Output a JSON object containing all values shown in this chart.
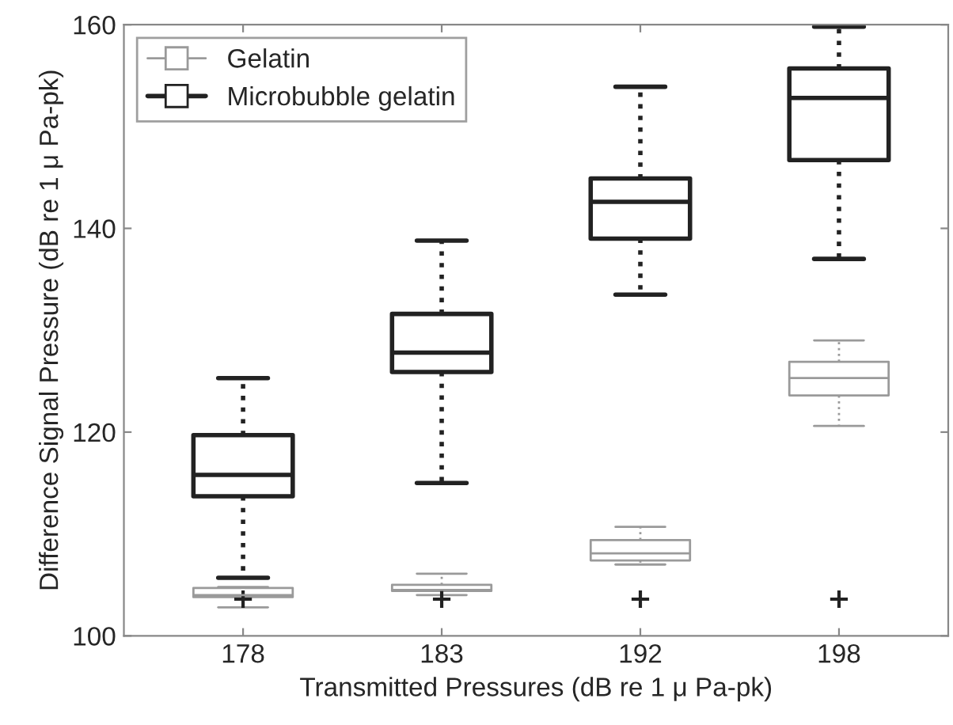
{
  "chart_data": {
    "type": "box",
    "xlabel": "Transmitted Pressures (dB re 1 μ Pa-pk)",
    "ylabel": "Difference Signal Pressure (dB re 1 μ Pa-pk)",
    "categories": [
      "178",
      "183",
      "192",
      "198"
    ],
    "ylim": [
      100,
      160
    ],
    "yticks": [
      100,
      120,
      140,
      160
    ],
    "grid": false,
    "legend": "top left",
    "series": [
      {
        "name": "Gelatin",
        "color": "#9a9a9a",
        "boxes": [
          {
            "low": 102.8,
            "q1": 103.8,
            "median": 104.0,
            "q3": 104.7,
            "high": 104.8
          },
          {
            "low": 104.0,
            "q1": 104.4,
            "median": 104.5,
            "q3": 105.0,
            "high": 106.1
          },
          {
            "low": 107.0,
            "q1": 107.4,
            "median": 108.1,
            "q3": 109.4,
            "high": 110.7
          },
          {
            "low": 120.6,
            "q1": 123.6,
            "median": 125.3,
            "q3": 126.9,
            "high": 129.0
          }
        ]
      },
      {
        "name": "Microbubble gelatin",
        "color": "#222222",
        "boxes": [
          {
            "low": 105.7,
            "q1": 113.7,
            "median": 115.8,
            "q3": 119.7,
            "high": 125.3,
            "outliers": [
              103.6
            ]
          },
          {
            "low": 115.0,
            "q1": 125.9,
            "median": 127.8,
            "q3": 131.6,
            "high": 138.8,
            "outliers": [
              103.6
            ]
          },
          {
            "low": 133.5,
            "q1": 139.0,
            "median": 142.6,
            "q3": 144.9,
            "high": 153.9,
            "outliers": [
              103.6
            ]
          },
          {
            "low": 137.0,
            "q1": 146.7,
            "median": 152.8,
            "q3": 155.7,
            "high": 159.8,
            "outliers": [
              103.6
            ]
          }
        ]
      }
    ]
  }
}
